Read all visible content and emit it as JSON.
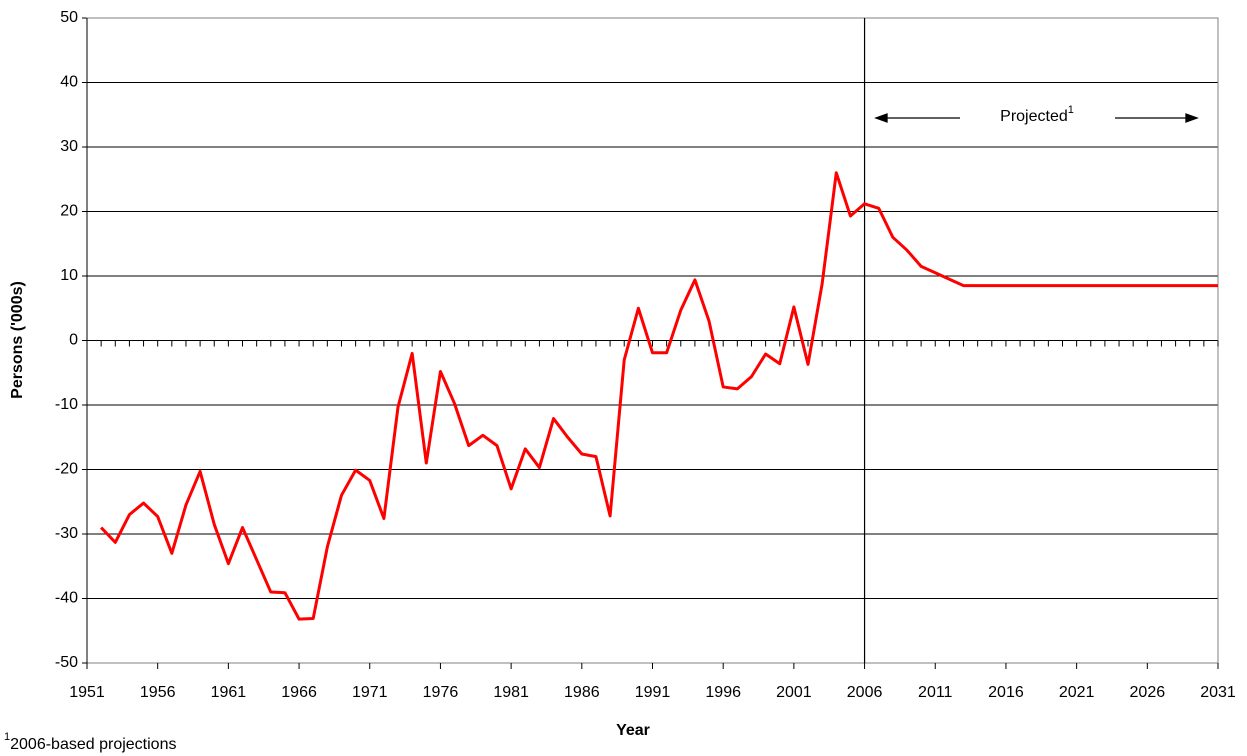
{
  "chart_data": {
    "type": "line",
    "x_label": "Year",
    "y_label": "Persons ('000s)",
    "x": [
      1952,
      1953,
      1954,
      1955,
      1956,
      1957,
      1958,
      1959,
      1960,
      1961,
      1962,
      1963,
      1964,
      1965,
      1966,
      1967,
      1968,
      1969,
      1970,
      1971,
      1972,
      1973,
      1974,
      1975,
      1976,
      1977,
      1978,
      1979,
      1980,
      1981,
      1982,
      1983,
      1984,
      1985,
      1986,
      1987,
      1988,
      1989,
      1990,
      1991,
      1992,
      1993,
      1994,
      1995,
      1996,
      1997,
      1998,
      1999,
      2000,
      2001,
      2002,
      2003,
      2004,
      2005,
      2006,
      2007,
      2008,
      2009,
      2010,
      2011,
      2012,
      2013,
      2014,
      2015,
      2016,
      2017,
      2018,
      2019,
      2020,
      2021,
      2022,
      2023,
      2024,
      2025,
      2026,
      2027,
      2028,
      2029,
      2030,
      2031
    ],
    "values": [
      -29,
      -31.3,
      -27,
      -25.2,
      -27.3,
      -33,
      -25.5,
      -20.3,
      -28.5,
      -34.6,
      -29,
      -34,
      -39,
      -39.1,
      -43.2,
      -43.1,
      -32,
      -24,
      -20.1,
      -21.7,
      -27.6,
      -10.3,
      -2,
      -19,
      -4.8,
      -9.8,
      -16.3,
      -14.7,
      -16.3,
      -23,
      -16.8,
      -19.7,
      -12.1,
      -15,
      -17.6,
      -18,
      -27.2,
      -3,
      5,
      -1.9,
      -1.9,
      4.7,
      9.4,
      3,
      -7.2,
      -7.5,
      -5.6,
      -2.1,
      -3.6,
      5.2,
      -3.7,
      8.8,
      26,
      19.3,
      21.2,
      20.5,
      16,
      14,
      11.5,
      10.5,
      9.5,
      8.5,
      8.5,
      8.5,
      8.5,
      8.5,
      8.5,
      8.5,
      8.5,
      8.5,
      8.5,
      8.5,
      8.5,
      8.5,
      8.5,
      8.5,
      8.5,
      8.5,
      8.5,
      8.5
    ],
    "color": "#ff0000",
    "xlim": [
      1951,
      2031
    ],
    "xticks": [
      1951,
      1956,
      1961,
      1966,
      1971,
      1976,
      1981,
      1986,
      1991,
      1996,
      2001,
      2006,
      2011,
      2016,
      2021,
      2026,
      2031
    ],
    "xminorticks": [
      1951,
      1952,
      1953,
      1954,
      1955,
      1956,
      1957,
      1958,
      1959,
      1960,
      1961,
      1962,
      1963,
      1964,
      1965,
      1966,
      1967,
      1968,
      1969,
      1970,
      1971,
      1972,
      1973,
      1974,
      1975,
      1976,
      1977,
      1978,
      1979,
      1980,
      1981,
      1982,
      1983,
      1984,
      1985,
      1986,
      1987,
      1988,
      1989,
      1990,
      1991,
      1992,
      1993,
      1994,
      1995,
      1996,
      1997,
      1998,
      1999,
      2000,
      2001,
      2002,
      2003,
      2004,
      2005,
      2006,
      2007,
      2008,
      2009,
      2010,
      2011,
      2012,
      2013,
      2014,
      2015,
      2016,
      2017,
      2018,
      2019,
      2020,
      2021,
      2022,
      2023,
      2024,
      2025,
      2026,
      2027,
      2028,
      2029,
      2030,
      2031
    ],
    "ylim": [
      -50,
      50
    ],
    "yticks": [
      -50,
      -40,
      -30,
      -20,
      -10,
      0,
      10,
      20,
      30,
      40,
      50
    ],
    "grid": true,
    "vline": 2006,
    "annotation": "Projected",
    "annotation_sup": "1",
    "footnote_sup": "1",
    "footnote": "2006-based projections"
  }
}
